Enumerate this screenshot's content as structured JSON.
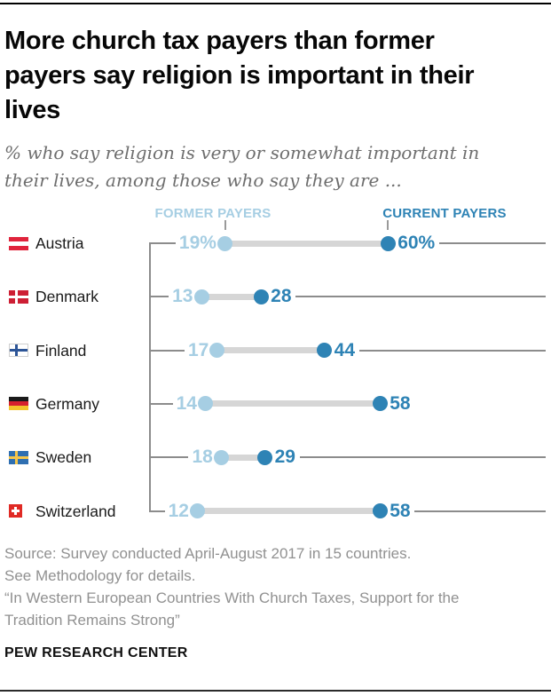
{
  "header": {
    "title": "More church tax payers than former payers say religion is important in their lives",
    "title_lines": [
      "More church tax payers than former",
      "payers say religion is important in their",
      "lives"
    ],
    "subtitle_lines": [
      "% who say religion is very or somewhat important in",
      "their lives, among those who say they are ..."
    ]
  },
  "chart_data": {
    "type": "dumbbell",
    "categories": [
      "Austria",
      "Denmark",
      "Finland",
      "Germany",
      "Sweden",
      "Switzerland"
    ],
    "series": [
      {
        "name": "FORMER PAYERS",
        "color": "#a6cee3",
        "values": [
          19,
          13,
          17,
          14,
          18,
          12
        ]
      },
      {
        "name": "CURRENT PAYERS",
        "color": "#2e83b5",
        "values": [
          60,
          28,
          44,
          58,
          29,
          58
        ]
      }
    ],
    "value_labels": {
      "former": [
        "19%",
        "13",
        "17",
        "14",
        "18",
        "12"
      ],
      "current": [
        "60%",
        "28",
        "44",
        "58",
        "29",
        "58"
      ]
    },
    "rows_with_right_line": [
      true,
      true,
      true,
      false,
      true,
      true
    ],
    "flags": [
      "austria",
      "denmark",
      "finland",
      "germany",
      "sweden",
      "switzerland"
    ],
    "xlim": [
      0,
      100
    ],
    "bar_color": "#d6d6d6",
    "line_color": "#8c8c8c",
    "legend_position": "top"
  },
  "footer": {
    "source_lines": [
      "Source: Survey conducted April-August 2017 in 15 countries.",
      "See Methodology for details.",
      "“In Western European Countries With Church Taxes, Support for the",
      "Tradition Remains Strong”"
    ],
    "brand": "PEW RESEARCH CENTER"
  }
}
